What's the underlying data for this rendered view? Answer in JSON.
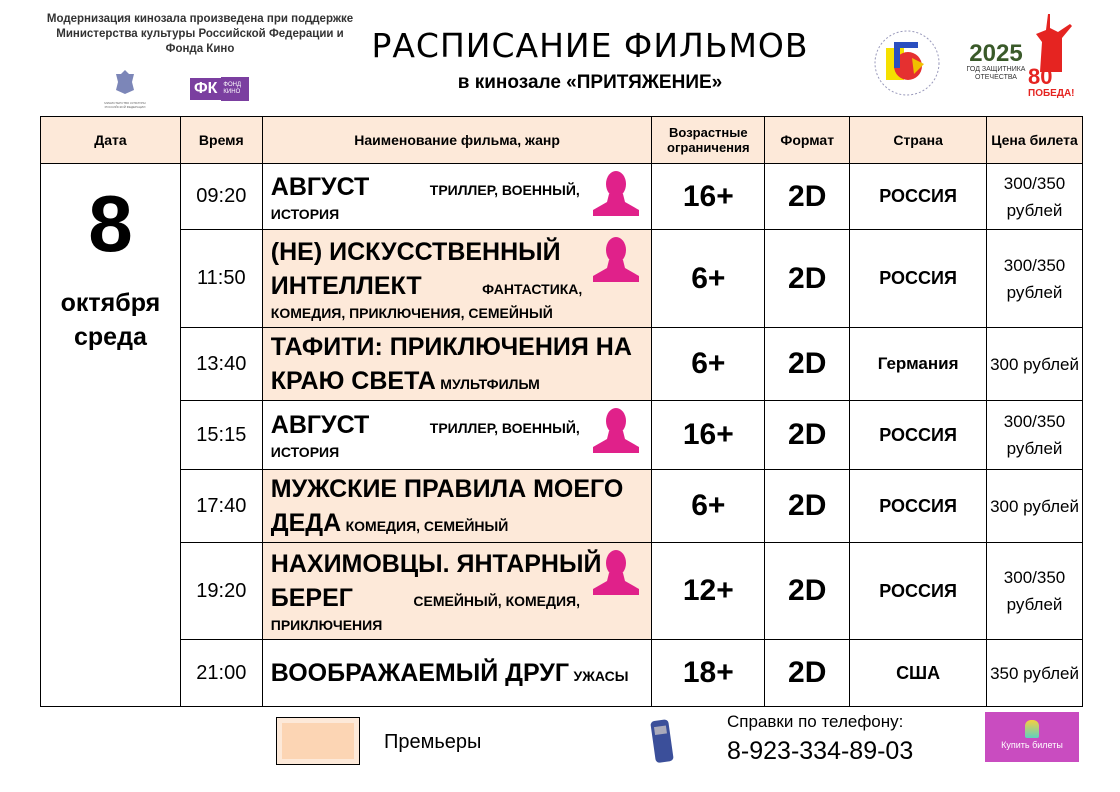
{
  "header": {
    "note": "Модернизация кинозала произведена при поддержке Министерства культуры Российской Федерации и Фонда Кино",
    "title": "РАСПИСАНИЕ ФИЛЬМОВ",
    "subtitle": "в кинозале «ПРИТЯЖЕНИЕ»",
    "logos": {
      "ministry": "МИНИСТЕРСТВО КУЛЬТУРЫ РОССИЙСКОЙ ФЕДЕРАЦИИ",
      "fond": "ФК",
      "fond_text": "ФОНД КИНО",
      "year": "2025",
      "year_text": "ГОД ЗАЩИТНИКА ОТЕЧЕСТВА",
      "victory_num": "80",
      "victory_text": "ПОБЕДА!"
    }
  },
  "table": {
    "headers": [
      "Дата",
      "Время",
      "Наименование фильма, жанр",
      "Возрастные ограничения",
      "Формат",
      "Страна",
      "Цена билета"
    ],
    "date": {
      "day": "8",
      "month": "октября",
      "weekday": "среда"
    },
    "rows": [
      {
        "time": "09:20",
        "title": "АВГУСТ",
        "genre": "ТРИЛЛЕР, ВОЕННЫЙ, ИСТОРИЯ",
        "age": "16+",
        "format": "2D",
        "country": "РОССИЯ",
        "price": "300/350 рублей",
        "premiere": false,
        "icon": "bust-icon"
      },
      {
        "time": "11:50",
        "title": "(НЕ) ИСКУССТВЕННЫЙ ИНТЕЛЛЕКТ",
        "genre": "ФАНТАСТИКА, КОМЕДИЯ, ПРИКЛЮЧЕНИЯ, СЕМЕЙНЫЙ",
        "age": "6+",
        "format": "2D",
        "country": "РОССИЯ",
        "price": "300/350 рублей",
        "premiere": true,
        "icon": "bust-icon"
      },
      {
        "time": "13:40",
        "title": "ТАФИТИ: ПРИКЛЮЧЕНИЯ НА КРАЮ СВЕТА",
        "genre": "МУЛЬТФИЛЬМ",
        "age": "6+",
        "format": "2D",
        "country": "Германия",
        "price": "300 рублей",
        "premiere": true
      },
      {
        "time": "15:15",
        "title": "АВГУСТ",
        "genre": "ТРИЛЛЕР, ВОЕННЫЙ, ИСТОРИЯ",
        "age": "16+",
        "format": "2D",
        "country": "РОССИЯ",
        "price": "300/350 рублей",
        "premiere": false,
        "icon": "bust-icon"
      },
      {
        "time": "17:40",
        "title": "МУЖСКИЕ ПРАВИЛА МОЕГО ДЕДА",
        "genre": "КОМЕДИЯ, СЕМЕЙНЫЙ",
        "age": "6+",
        "format": "2D",
        "country": "РОССИЯ",
        "price": "300 рублей",
        "premiere": true
      },
      {
        "time": "19:20",
        "title": "НАХИМОВЦЫ. ЯНТАРНЫЙ БЕРЕГ",
        "genre": "СЕМЕЙНЫЙ, КОМЕДИЯ, ПРИКЛЮЧЕНИЯ",
        "age": "12+",
        "format": "2D",
        "country": "РОССИЯ",
        "price": "300/350 рублей",
        "premiere": true,
        "icon": "bust-icon"
      },
      {
        "time": "21:00",
        "title": "ВООБРАЖАЕМЫЙ ДРУГ",
        "genre": "УЖАСЫ",
        "age": "18+",
        "format": "2D",
        "country": "США",
        "price": "350 рублей",
        "premiere": false
      }
    ]
  },
  "footer": {
    "legend": "Премьеры",
    "phone_label": "Справки  по телефону:",
    "phone": "8-923-334-89-03",
    "buy": "Купить билеты"
  },
  "colors": {
    "premiere": "#fde9d9",
    "legend_swatch": "#fcd5b4",
    "bust": "#e0218a",
    "buy": "#c94cc0",
    "fond": "#7b3fa0",
    "year": "#3a5a2a",
    "victory": "#e52421"
  }
}
